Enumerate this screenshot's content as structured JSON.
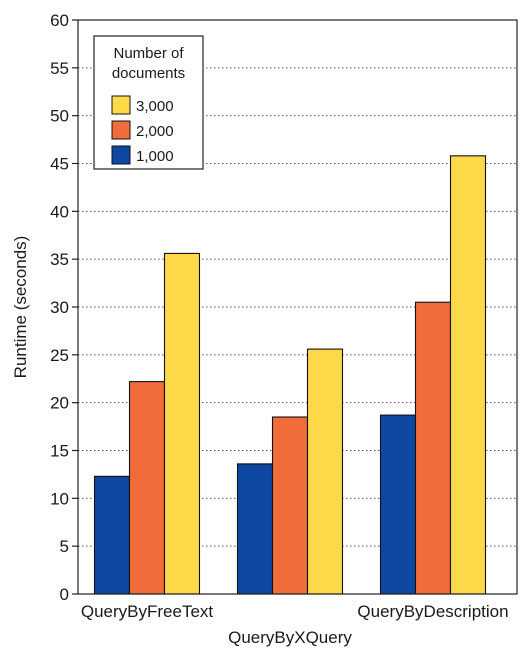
{
  "chart_data": {
    "type": "bar",
    "title": "",
    "xlabel": "",
    "ylabel": "Runtime (seconds)",
    "ylim": [
      0,
      60
    ],
    "yticks": [
      0,
      5,
      10,
      15,
      20,
      25,
      30,
      35,
      40,
      45,
      50,
      55,
      60
    ],
    "grid": "horizontal dotted",
    "categories": [
      "QueryByFreeText",
      "QueryByXQuery",
      "QueryByDescription"
    ],
    "series": [
      {
        "name": "1,000",
        "color": "#0d47a1",
        "values": [
          12.3,
          13.6,
          18.7
        ]
      },
      {
        "name": "2,000",
        "color": "#f26b3a",
        "values": [
          22.2,
          18.5,
          30.5
        ]
      },
      {
        "name": "3,000",
        "color": "#fdd94a",
        "values": [
          35.6,
          25.6,
          45.8
        ]
      }
    ],
    "legend": {
      "title_lines": [
        "Number of",
        "documents"
      ],
      "order": [
        "3,000",
        "2,000",
        "1,000"
      ],
      "placement": "top-left"
    }
  }
}
